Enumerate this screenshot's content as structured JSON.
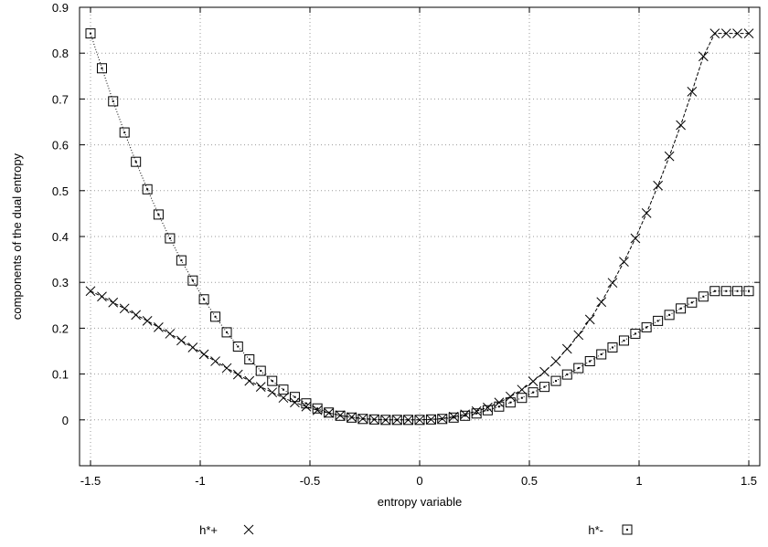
{
  "chart_data": {
    "type": "line",
    "xlabel": "entropy variable",
    "ylabel": "components of the dual entropy",
    "xlim": [
      -1.55,
      1.55
    ],
    "ylim": [
      -0.1,
      0.9
    ],
    "xticks": [
      -1.5,
      -1,
      -0.5,
      0,
      0.5,
      1,
      1.5
    ],
    "xtick_labels": [
      "-1.5",
      "-1",
      "-0.5",
      "0",
      "0.5",
      "1",
      "1.5"
    ],
    "yticks": [
      0,
      0.1,
      0.2,
      0.3,
      0.4,
      0.5,
      0.6,
      0.7,
      0.8,
      0.9
    ],
    "ytick_labels": [
      "0",
      "0.1",
      "0.2",
      "0.3",
      "0.4",
      "0.5",
      "0.6",
      "0.7",
      "0.8",
      "0.9"
    ],
    "grid": true,
    "legend_position": "bottom",
    "x": [
      -1.5,
      -1.448,
      -1.397,
      -1.345,
      -1.293,
      -1.241,
      -1.19,
      -1.138,
      -1.086,
      -1.034,
      -0.983,
      -0.931,
      -0.879,
      -0.828,
      -0.776,
      -0.724,
      -0.672,
      -0.621,
      -0.569,
      -0.517,
      -0.466,
      -0.414,
      -0.362,
      -0.31,
      -0.259,
      -0.207,
      -0.155,
      -0.103,
      -0.052,
      0.0,
      0.052,
      0.103,
      0.155,
      0.207,
      0.259,
      0.31,
      0.362,
      0.414,
      0.466,
      0.517,
      0.569,
      0.621,
      0.672,
      0.724,
      0.776,
      0.828,
      0.879,
      0.931,
      0.983,
      1.034,
      1.086,
      1.138,
      1.19,
      1.241,
      1.293,
      1.345,
      1.397,
      1.448,
      1.5
    ],
    "series": [
      {
        "name": "h*+",
        "marker": "cross",
        "line_style": "dashed",
        "values": [
          0.281,
          0.269,
          0.256,
          0.243,
          0.229,
          0.216,
          0.202,
          0.188,
          0.173,
          0.158,
          0.143,
          0.128,
          0.113,
          0.099,
          0.085,
          0.072,
          0.06,
          0.048,
          0.038,
          0.029,
          0.021,
          0.015,
          0.01,
          0.006,
          0.003,
          0.001,
          0.0,
          0.0,
          0.0,
          0.0,
          0.001,
          0.003,
          0.007,
          0.012,
          0.019,
          0.027,
          0.038,
          0.051,
          0.066,
          0.084,
          0.105,
          0.128,
          0.155,
          0.185,
          0.219,
          0.257,
          0.299,
          0.345,
          0.396,
          0.451,
          0.511,
          0.575,
          0.643,
          0.716,
          0.793,
          0.843,
          0.843,
          0.843,
          0.843
        ]
      },
      {
        "name": "h*-",
        "marker": "square-dot",
        "line_style": "dotted",
        "values": [
          0.843,
          0.767,
          0.695,
          0.627,
          0.563,
          0.503,
          0.448,
          0.396,
          0.348,
          0.304,
          0.263,
          0.225,
          0.191,
          0.16,
          0.132,
          0.107,
          0.085,
          0.066,
          0.05,
          0.036,
          0.025,
          0.016,
          0.009,
          0.005,
          0.002,
          0.001,
          0.0,
          0.0,
          0.0,
          0.0,
          0.001,
          0.002,
          0.005,
          0.009,
          0.014,
          0.021,
          0.029,
          0.038,
          0.048,
          0.06,
          0.072,
          0.085,
          0.099,
          0.113,
          0.128,
          0.143,
          0.158,
          0.173,
          0.188,
          0.202,
          0.216,
          0.229,
          0.243,
          0.256,
          0.269,
          0.281,
          0.281,
          0.281,
          0.281
        ]
      }
    ]
  }
}
